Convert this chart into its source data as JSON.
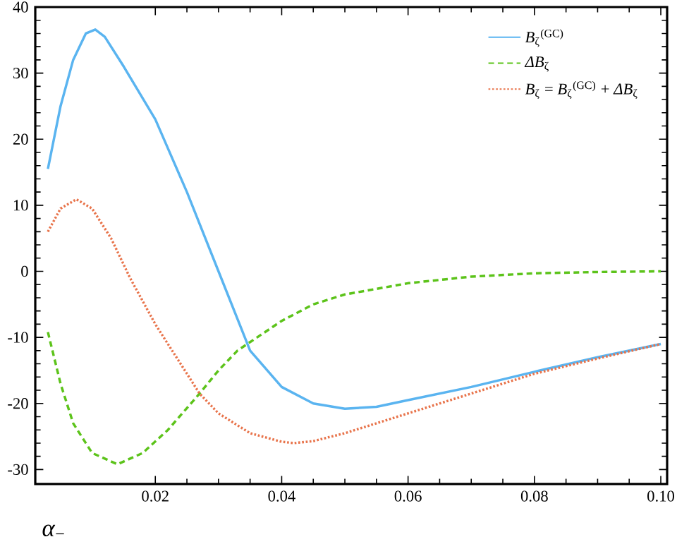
{
  "chart_data": {
    "type": "line",
    "xlabel": "*α*$_{−}$",
    "xlim": [
      0.001,
      0.101
    ],
    "ylim": [
      -32.2,
      40
    ],
    "xticks": [
      0.02,
      0.04,
      0.06,
      0.08,
      {
        "value": 0.1,
        "label": "0.10"
      }
    ],
    "yticks": [
      -30,
      -20,
      -10,
      0,
      10,
      20,
      30,
      40
    ],
    "grid": false,
    "legend": "top right",
    "marker": "none",
    "series": [
      {
        "name": "*B*$_{ζ}$$^{(GC)}$",
        "color": "#5ab4f0",
        "line_style": "solid",
        "x": [
          0.003,
          0.005,
          0.007,
          0.009,
          0.0105,
          0.012,
          0.015,
          0.02,
          0.025,
          0.03,
          0.035,
          0.04,
          0.045,
          0.05,
          0.055,
          0.06,
          0.07,
          0.08,
          0.09,
          0.1
        ],
        "values": [
          15.5,
          25,
          32,
          36,
          36.6,
          35.5,
          31,
          23,
          12,
          0,
          -12,
          -17.5,
          -20,
          -20.8,
          -20.5,
          -19.5,
          -17.5,
          -15.2,
          -13,
          -11
        ]
      },
      {
        "name": "*ΔB*$_{ζ}$",
        "color": "#5cc31a",
        "line_style": "dashed",
        "x": [
          0.003,
          0.005,
          0.007,
          0.01,
          0.014,
          0.018,
          0.022,
          0.027,
          0.03,
          0.033,
          0.04,
          0.045,
          0.05,
          0.06,
          0.07,
          0.08,
          0.09,
          0.1
        ],
        "values": [
          -9.2,
          -17,
          -23,
          -27.5,
          -29.2,
          -27.5,
          -24,
          -18.5,
          -15,
          -12,
          -7.5,
          -5,
          -3.5,
          -1.8,
          -0.8,
          -0.3,
          -0.1,
          0
        ]
      },
      {
        "name": "*B*$_{ζ}$ = *B*$_{ζ}$$^{(GC)}$ + *ΔB*$_{ζ}$",
        "color": "#e8734a",
        "line_style": "dotted",
        "x": [
          0.003,
          0.005,
          0.0075,
          0.01,
          0.013,
          0.016,
          0.02,
          0.025,
          0.027,
          0.03,
          0.035,
          0.04,
          0.042,
          0.045,
          0.05,
          0.06,
          0.07,
          0.08,
          0.09,
          0.1
        ],
        "values": [
          6,
          9.5,
          10.9,
          9.5,
          5,
          -1,
          -8,
          -15.5,
          -18.5,
          -21.5,
          -24.5,
          -25.8,
          -26,
          -25.7,
          -24.5,
          -21.5,
          -18.5,
          -15.5,
          -13.2,
          -11
        ]
      }
    ]
  }
}
